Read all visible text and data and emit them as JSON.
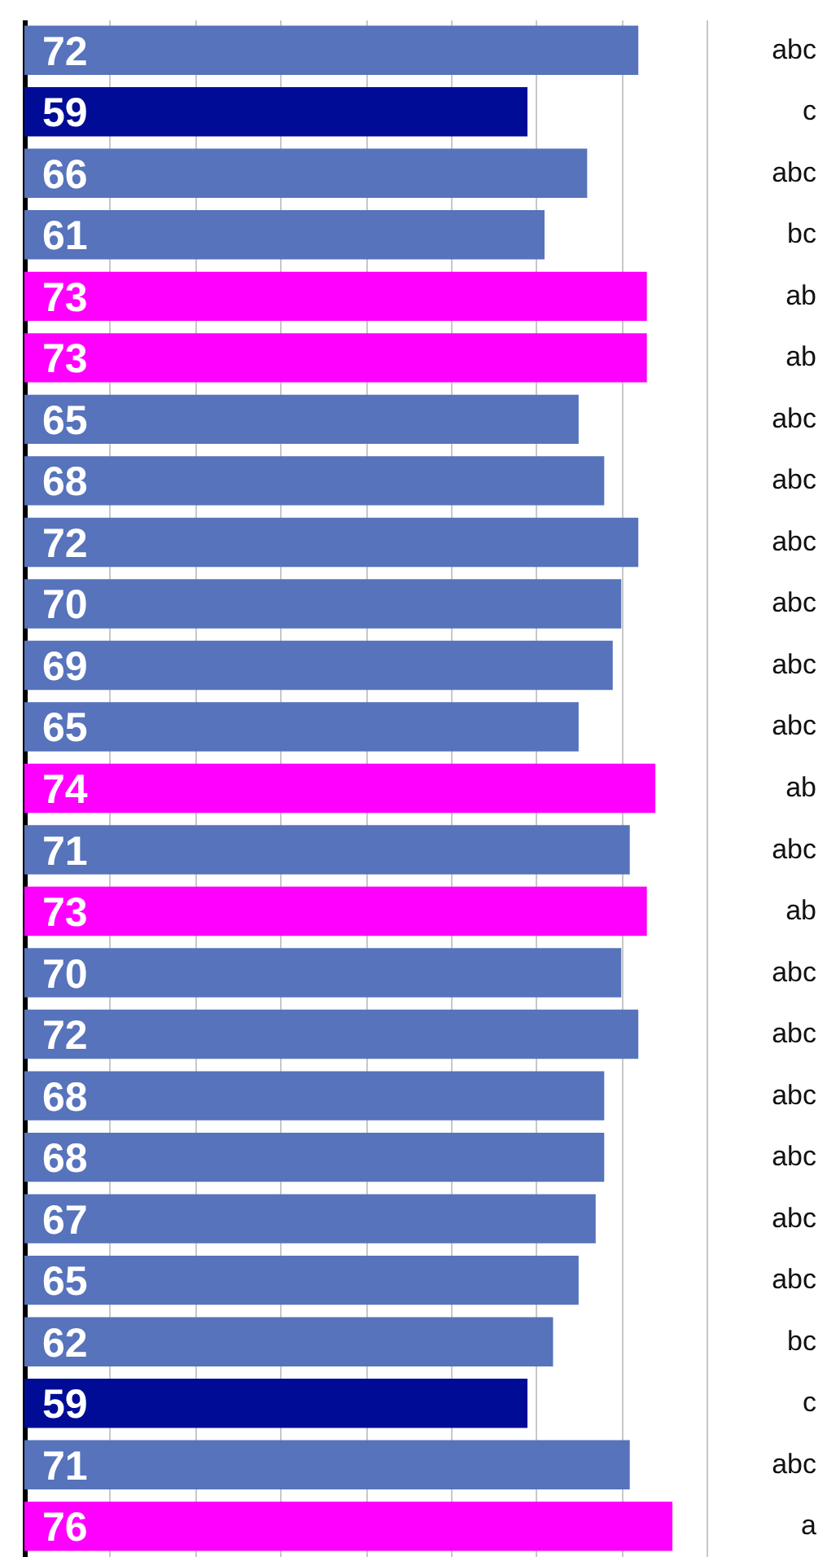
{
  "chart_data": {
    "type": "bar",
    "orientation": "horizontal",
    "data_labels": true,
    "grid": "x",
    "tick_labels": "y",
    "categories": [
      "abc",
      "c",
      "abc",
      "bc",
      "ab",
      "ab",
      "abc",
      "abc",
      "abc",
      "abc",
      "abc",
      "abc",
      "ab",
      "abc",
      "ab",
      "abc",
      "abc",
      "abc",
      "abc",
      "abc",
      "abc",
      "bc",
      "c",
      "abc",
      "a"
    ],
    "values": [
      72,
      59,
      66,
      61,
      73,
      73,
      65,
      68,
      72,
      70,
      69,
      65,
      74,
      71,
      73,
      70,
      72,
      68,
      68,
      67,
      65,
      62,
      59,
      71,
      76
    ],
    "colors": [
      "#5673bb",
      "#000c96",
      "#5673bb",
      "#5673bb",
      "#ff00ff",
      "#ff00ff",
      "#5673bb",
      "#5673bb",
      "#5673bb",
      "#5673bb",
      "#5673bb",
      "#5673bb",
      "#ff00ff",
      "#5673bb",
      "#ff00ff",
      "#5673bb",
      "#5673bb",
      "#5673bb",
      "#5673bb",
      "#5673bb",
      "#5673bb",
      "#5673bb",
      "#000c96",
      "#5673bb",
      "#ff00ff"
    ],
    "xlim": [
      0,
      80
    ],
    "xticks": [
      {
        "value": 0,
        "label": null
      },
      {
        "value": 10,
        "label": null
      },
      {
        "value": 20,
        "label": null
      },
      {
        "value": 30,
        "label": null
      },
      {
        "value": 40,
        "label": null
      },
      {
        "value": 50,
        "label": null
      },
      {
        "value": 60,
        "label": null
      },
      {
        "value": 70,
        "label": null
      },
      {
        "value": 80,
        "label": null
      }
    ]
  }
}
